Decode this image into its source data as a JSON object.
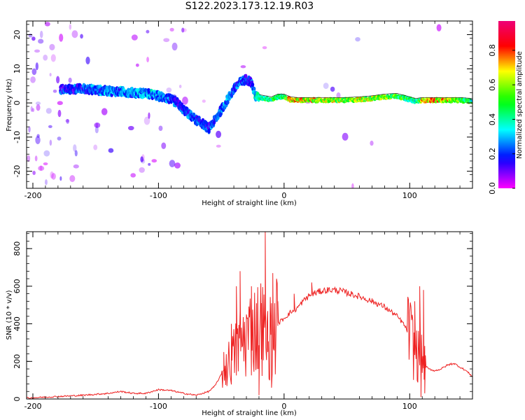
{
  "title": "S122.2023.173.12.19.R03",
  "chart_data": [
    {
      "type": "heatmap",
      "xlabel": "Height of straight line (km)",
      "ylabel": "Frequency (Hz)",
      "xlim": [
        -205,
        150
      ],
      "ylim": [
        -25,
        24
      ],
      "xticks": [
        -200,
        -100,
        0,
        100
      ],
      "yticks": [
        -20,
        -10,
        0,
        10,
        20
      ],
      "grid": false,
      "colorbar": {
        "label": "Normalized spectral amplitude",
        "range": [
          0.0,
          0.97
        ],
        "ticks": [
          0.0,
          0.2,
          0.4,
          0.6,
          0.8
        ],
        "colormap": [
          "#ee0077",
          "#ff0000",
          "#ffff00",
          "#00ff00",
          "#00ffff",
          "#0000ff",
          "#ff00ff"
        ]
      },
      "ridge": {
        "x": [
          -178,
          -170,
          -160,
          -150,
          -140,
          -130,
          -120,
          -110,
          -100,
          -92,
          -85,
          -80,
          -75,
          -70,
          -65,
          -60,
          -55,
          -50,
          -45,
          -40,
          -35,
          -30,
          -26,
          -23,
          -18,
          -10,
          -5,
          0,
          5,
          10,
          20,
          30,
          40,
          50,
          60,
          70,
          80,
          90,
          100,
          105,
          110,
          120,
          130,
          140,
          150
        ],
        "y": [
          4,
          4,
          4.2,
          3.8,
          3.5,
          3.3,
          3,
          2.8,
          2,
          1.3,
          0,
          -2,
          -3.5,
          -5,
          -6,
          -7.5,
          -5,
          -2,
          1,
          4,
          6,
          7,
          6,
          2,
          1.5,
          1,
          1.8,
          1.8,
          1,
          0.8,
          0.8,
          0.8,
          0.8,
          0.8,
          1,
          1.3,
          1.8,
          2,
          1,
          0.5,
          0.8,
          0.8,
          0.8,
          0.8,
          0.5
        ],
        "amplitude": [
          0.3,
          0.3,
          0.35,
          0.35,
          0.4,
          0.4,
          0.4,
          0.45,
          0.4,
          0.35,
          0.3,
          0.3,
          0.35,
          0.35,
          0.35,
          0.3,
          0.35,
          0.4,
          0.4,
          0.35,
          0.35,
          0.3,
          0.3,
          0.5,
          0.55,
          0.6,
          0.6,
          0.6,
          0.95,
          0.9,
          0.85,
          0.8,
          0.8,
          0.75,
          0.8,
          0.8,
          0.75,
          0.7,
          0.6,
          0.5,
          0.9,
          0.95,
          0.85,
          0.7,
          0.6
        ]
      }
    },
    {
      "type": "line",
      "xlabel": "Height of straight line (km)",
      "ylabel": "SNR (10 * v/v)",
      "xlim": [
        -205,
        150
      ],
      "ylim": [
        0,
        890
      ],
      "xticks": [
        -200,
        -100,
        0,
        100
      ],
      "yticks": [
        0,
        200,
        400,
        600,
        800
      ],
      "grid": false,
      "series": [
        {
          "color": "#ee2222",
          "x": [
            -205,
            -190,
            -175,
            -160,
            -150,
            -140,
            -130,
            -120,
            -110,
            -100,
            -90,
            -80,
            -70,
            -60,
            -55,
            -50,
            -45,
            -40,
            -35,
            -30,
            -25,
            -20,
            -17,
            -15,
            -10,
            -5,
            0,
            5,
            10,
            15,
            20,
            25,
            30,
            35,
            40,
            45,
            50,
            60,
            70,
            80,
            90,
            95,
            100,
            103,
            106,
            108,
            110,
            112,
            115,
            120,
            125,
            130,
            135,
            140,
            145,
            150
          ],
          "y": [
            5,
            10,
            15,
            20,
            25,
            30,
            40,
            30,
            30,
            50,
            45,
            30,
            20,
            40,
            70,
            130,
            180,
            230,
            300,
            330,
            370,
            380,
            400,
            300,
            340,
            400,
            430,
            460,
            480,
            520,
            550,
            565,
            575,
            580,
            580,
            575,
            565,
            545,
            520,
            490,
            440,
            400,
            340,
            280,
            230,
            230,
            200,
            180,
            160,
            150,
            160,
            180,
            190,
            170,
            150,
            120
          ],
          "spikes": [
            {
              "x": -48,
              "y": 250
            },
            {
              "x": -42,
              "y": 400
            },
            {
              "x": -38,
              "y": 600
            },
            {
              "x": -35,
              "y": 680
            },
            {
              "x": -30,
              "y": 450
            },
            {
              "x": -26,
              "y": 600
            },
            {
              "x": -22,
              "y": 350
            },
            {
              "x": -18,
              "y": 510
            },
            {
              "x": -15,
              "y": 890
            },
            {
              "x": -13,
              "y": 250
            },
            {
              "x": -9,
              "y": 670
            },
            {
              "x": -5,
              "y": 520
            },
            {
              "x": 8,
              "y": 560
            },
            {
              "x": 22,
              "y": 620
            },
            {
              "x": 100,
              "y": 460
            },
            {
              "x": 104,
              "y": 520
            },
            {
              "x": 108,
              "y": 600
            },
            {
              "x": 111,
              "y": 580
            }
          ],
          "dips": [
            {
              "x": -20,
              "y": 20
            },
            {
              "x": -10,
              "y": 60
            },
            {
              "x": 109,
              "y": 10
            },
            {
              "x": 112,
              "y": 30
            }
          ]
        }
      ]
    }
  ]
}
